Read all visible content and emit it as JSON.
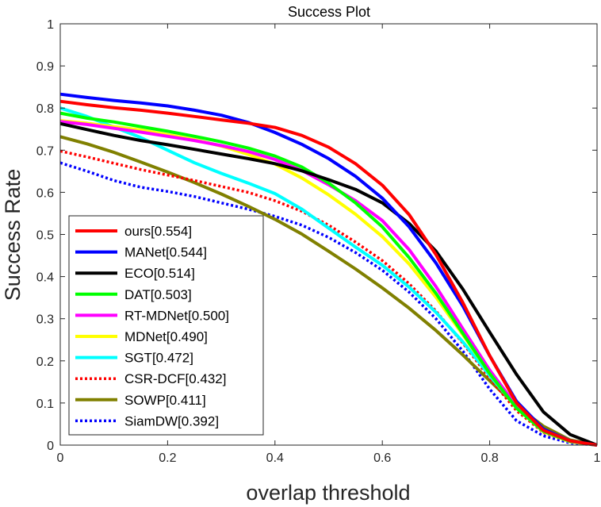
{
  "chart_data": {
    "type": "line",
    "title": "Success Plot",
    "xlabel": "overlap threshold",
    "ylabel": "Success Rate",
    "xlim": [
      0,
      1
    ],
    "ylim": [
      0,
      1
    ],
    "xticks": [
      "0",
      "0.2",
      "0.4",
      "0.6",
      "0.8",
      "1"
    ],
    "yticks": [
      "0",
      "0.1",
      "0.2",
      "0.3",
      "0.4",
      "0.5",
      "0.6",
      "0.7",
      "0.8",
      "0.9",
      "1"
    ],
    "grid": false,
    "legend_position": "bottom-left",
    "x": [
      0,
      0.05,
      0.1,
      0.15,
      0.2,
      0.25,
      0.3,
      0.35,
      0.4,
      0.45,
      0.5,
      0.55,
      0.6,
      0.65,
      0.7,
      0.75,
      0.8,
      0.85,
      0.9,
      0.95,
      1
    ],
    "series": [
      {
        "name": "ours[0.554]",
        "color": "#ff0000",
        "style": "solid",
        "values": [
          0.816,
          0.808,
          0.801,
          0.795,
          0.788,
          0.78,
          0.772,
          0.764,
          0.754,
          0.735,
          0.707,
          0.668,
          0.617,
          0.547,
          0.452,
          0.338,
          0.212,
          0.1,
          0.035,
          0.01,
          0.0
        ]
      },
      {
        "name": "MANet[0.544]",
        "color": "#0000ff",
        "style": "solid",
        "values": [
          0.833,
          0.825,
          0.818,
          0.812,
          0.805,
          0.795,
          0.783,
          0.766,
          0.742,
          0.714,
          0.68,
          0.638,
          0.586,
          0.518,
          0.432,
          0.33,
          0.212,
          0.104,
          0.038,
          0.01,
          0.0
        ]
      },
      {
        "name": "ECO[0.514]",
        "color": "#000000",
        "style": "solid",
        "values": [
          0.763,
          0.749,
          0.735,
          0.723,
          0.713,
          0.702,
          0.691,
          0.68,
          0.668,
          0.651,
          0.63,
          0.607,
          0.575,
          0.526,
          0.46,
          0.37,
          0.268,
          0.168,
          0.079,
          0.025,
          0.0
        ]
      },
      {
        "name": "DAT[0.503]",
        "color": "#00ff00",
        "style": "solid",
        "values": [
          0.788,
          0.776,
          0.767,
          0.756,
          0.745,
          0.733,
          0.72,
          0.705,
          0.686,
          0.66,
          0.622,
          0.575,
          0.518,
          0.445,
          0.36,
          0.265,
          0.17,
          0.088,
          0.033,
          0.009,
          0.0
        ]
      },
      {
        "name": "RT-MDNet[0.500]",
        "color": "#ff00ff",
        "style": "solid",
        "values": [
          0.768,
          0.761,
          0.752,
          0.743,
          0.733,
          0.723,
          0.711,
          0.697,
          0.678,
          0.652,
          0.618,
          0.58,
          0.533,
          0.464,
          0.376,
          0.276,
          0.178,
          0.093,
          0.035,
          0.009,
          0.0
        ]
      },
      {
        "name": "MDNet[0.490]",
        "color": "#ffff00",
        "style": "solid",
        "values": [
          0.77,
          0.764,
          0.756,
          0.748,
          0.737,
          0.725,
          0.71,
          0.69,
          0.667,
          0.634,
          0.594,
          0.548,
          0.495,
          0.43,
          0.351,
          0.262,
          0.17,
          0.088,
          0.032,
          0.008,
          0.0
        ]
      },
      {
        "name": "SGT[0.472]",
        "color": "#00ffff",
        "style": "solid",
        "values": [
          0.8,
          0.78,
          0.755,
          0.73,
          0.7,
          0.67,
          0.645,
          0.622,
          0.597,
          0.56,
          0.515,
          0.47,
          0.427,
          0.375,
          0.315,
          0.245,
          0.165,
          0.09,
          0.035,
          0.008,
          0.0
        ]
      },
      {
        "name": "CSR-DCF[0.432]",
        "color": "#ff0000",
        "style": "dotted",
        "values": [
          0.698,
          0.684,
          0.669,
          0.654,
          0.641,
          0.628,
          0.614,
          0.6,
          0.58,
          0.555,
          0.522,
          0.482,
          0.438,
          0.383,
          0.318,
          0.242,
          0.159,
          0.082,
          0.03,
          0.008,
          0.0
        ]
      },
      {
        "name": "SOWP[0.411]",
        "color": "#808000",
        "style": "solid",
        "values": [
          0.732,
          0.715,
          0.695,
          0.672,
          0.648,
          0.623,
          0.596,
          0.567,
          0.536,
          0.501,
          0.46,
          0.418,
          0.373,
          0.325,
          0.272,
          0.214,
          0.153,
          0.093,
          0.045,
          0.012,
          0.0
        ]
      },
      {
        "name": "SiamDW[0.392]",
        "color": "#0000ff",
        "style": "dotted",
        "values": [
          0.67,
          0.65,
          0.628,
          0.612,
          0.602,
          0.59,
          0.575,
          0.56,
          0.543,
          0.522,
          0.493,
          0.457,
          0.415,
          0.363,
          0.3,
          0.223,
          0.133,
          0.058,
          0.022,
          0.005,
          0.0
        ]
      }
    ]
  }
}
